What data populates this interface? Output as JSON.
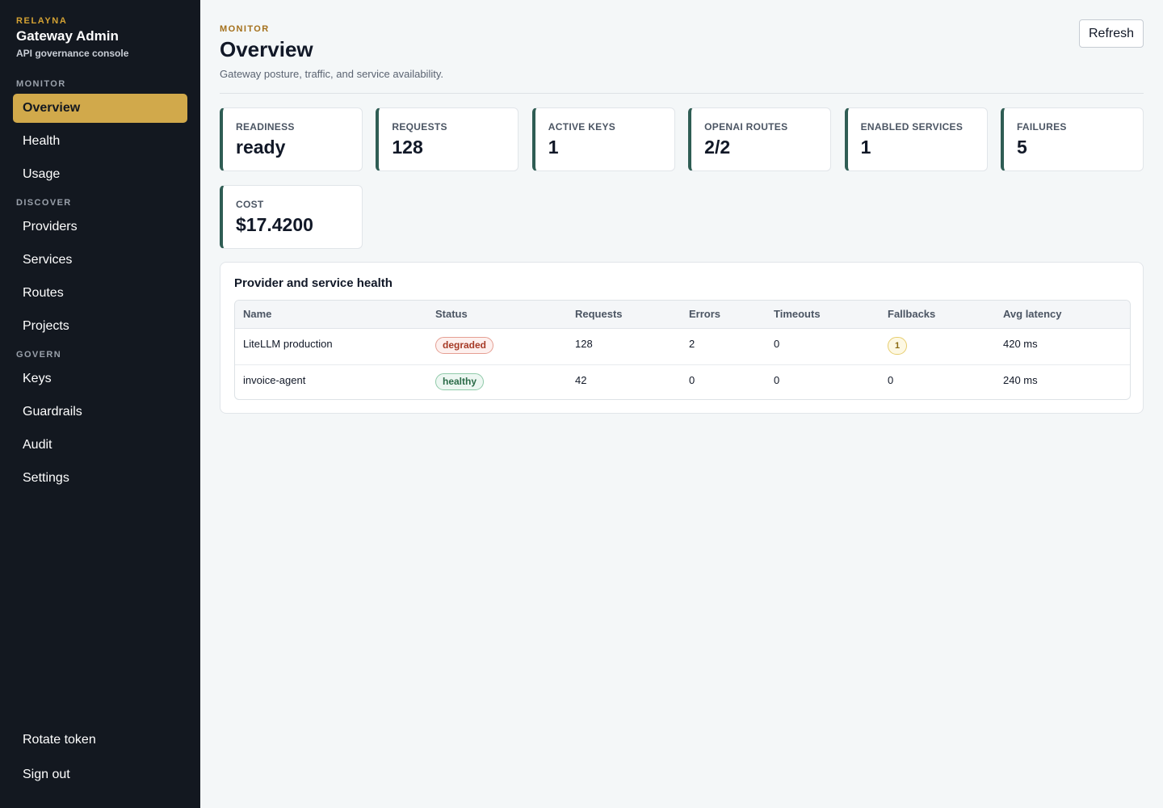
{
  "brand": {
    "eyebrow": "RELAYNA",
    "title": "Gateway Admin",
    "subtitle": "API governance console"
  },
  "nav": {
    "sections": [
      {
        "label": "MONITOR",
        "items": [
          "Overview",
          "Health",
          "Usage"
        ]
      },
      {
        "label": "DISCOVER",
        "items": [
          "Providers",
          "Services",
          "Routes",
          "Projects"
        ]
      },
      {
        "label": "GOVERN",
        "items": [
          "Keys",
          "Guardrails",
          "Audit",
          "Settings"
        ]
      }
    ],
    "active": "Overview",
    "footer": [
      "Rotate token",
      "Sign out"
    ]
  },
  "header": {
    "eyebrow": "MONITOR",
    "title": "Overview",
    "subtitle": "Gateway posture, traffic, and service availability.",
    "refresh_label": "Refresh"
  },
  "stats": [
    {
      "label": "READINESS",
      "value": "ready"
    },
    {
      "label": "REQUESTS",
      "value": "128"
    },
    {
      "label": "ACTIVE KEYS",
      "value": "1"
    },
    {
      "label": "OPENAI ROUTES",
      "value": "2/2"
    },
    {
      "label": "ENABLED SERVICES",
      "value": "1"
    },
    {
      "label": "FAILURES",
      "value": "5"
    },
    {
      "label": "COST",
      "value": "$17.4200"
    }
  ],
  "health": {
    "title": "Provider and service health",
    "columns": [
      "Name",
      "Status",
      "Requests",
      "Errors",
      "Timeouts",
      "Fallbacks",
      "Avg latency"
    ],
    "rows": [
      {
        "name": "LiteLLM production",
        "status": "degraded",
        "requests": "128",
        "errors": "2",
        "timeouts": "0",
        "fallbacks": "1",
        "fallbacks_badge": true,
        "latency": "420 ms"
      },
      {
        "name": "invoice-agent",
        "status": "healthy",
        "requests": "42",
        "errors": "0",
        "timeouts": "0",
        "fallbacks": "0",
        "fallbacks_badge": false,
        "latency": "240 ms"
      }
    ]
  },
  "colors": {
    "sidebar_bg": "#131820",
    "accent": "#d1a94b",
    "stat_border": "#2f5d54",
    "degraded": "#a63a26",
    "healthy": "#2b6b48"
  }
}
